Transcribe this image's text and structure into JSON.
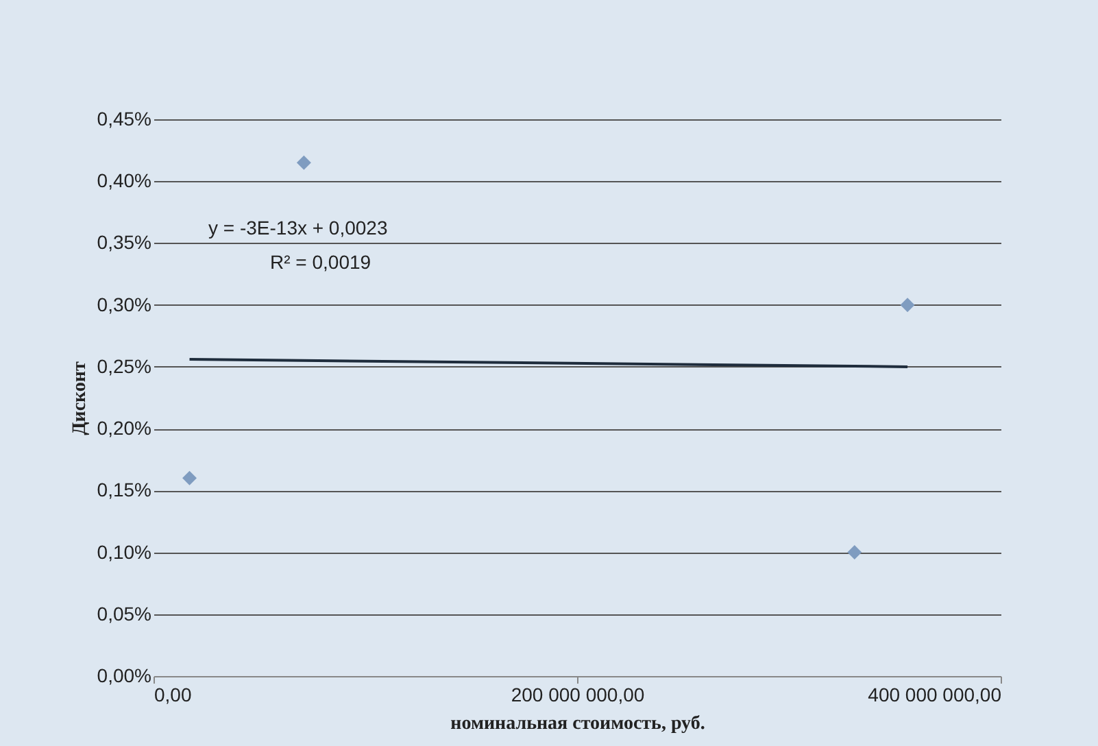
{
  "chart_data": {
    "type": "scatter",
    "xlabel": "номинальная стоимость, руб.",
    "ylabel": "Дисконт",
    "series": [
      {
        "color": "#7f9cc0",
        "marker": "diamond",
        "x": [
          17000000,
          71000000,
          331000000,
          356000000
        ],
        "values": [
          0.16,
          0.415,
          0.1,
          0.3
        ]
      },
      {
        "type": "line",
        "color": "#1f2d3d",
        "marker": "none",
        "x": [
          17000000,
          356000000
        ],
        "values": [
          0.256,
          0.25
        ]
      }
    ],
    "xlim": [
      0,
      400000000
    ],
    "xticks": [
      {
        "value": 0,
        "label": "0,00"
      },
      {
        "value": 200000000,
        "label": "200 000 000,00"
      },
      {
        "value": 400000000,
        "label": "400 000 000,00"
      }
    ],
    "ylim": [
      0,
      0.45
    ],
    "yticks": [
      {
        "value": 0,
        "label": "0,00%"
      },
      {
        "value": 0.05,
        "label": "0,05%"
      },
      {
        "value": 0.1,
        "label": "0,10%"
      },
      {
        "value": 0.15,
        "label": "0,15%"
      },
      {
        "value": 0.2,
        "label": "0,20%"
      },
      {
        "value": 0.25,
        "label": "0,25%"
      },
      {
        "value": 0.3,
        "label": "0,30%"
      },
      {
        "value": 0.35,
        "label": "0,35%"
      },
      {
        "value": 0.4,
        "label": "0,40%"
      },
      {
        "value": 0.45,
        "label": "0,45%"
      }
    ],
    "grid": "y",
    "annotations": [
      "y = -3E-13x + 0,0023",
      "R² = 0,0019"
    ]
  }
}
